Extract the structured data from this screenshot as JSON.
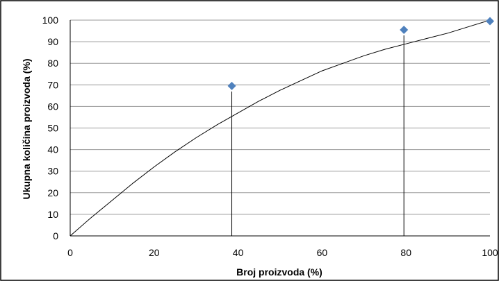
{
  "chart_data": {
    "type": "scatter",
    "title": "",
    "xlabel": "Broj proizvoda (%)",
    "ylabel": "Ukupna količina proizvoda (%)",
    "xlim": [
      0,
      100
    ],
    "ylim": [
      0,
      100
    ],
    "x_ticks": [
      "0",
      "20",
      "40",
      "60",
      "80",
      "100"
    ],
    "y_ticks": [
      "0",
      "10",
      "20",
      "30",
      "40",
      "50",
      "60",
      "70",
      "80",
      "90",
      "100"
    ],
    "grid": "horizontal",
    "legend": "none",
    "points": [
      {
        "x": 38.5,
        "y": 69.5
      },
      {
        "x": 79.5,
        "y": 95.5
      },
      {
        "x": 100,
        "y": 99.5
      }
    ],
    "drop_lines": [
      {
        "x": 38.5,
        "y": 69.5
      },
      {
        "x": 79.5,
        "y": 95.5
      }
    ],
    "curve": [
      {
        "x": 0,
        "y": 0
      },
      {
        "x": 5,
        "y": 8.5
      },
      {
        "x": 10,
        "y": 16.5
      },
      {
        "x": 15,
        "y": 24.5
      },
      {
        "x": 20,
        "y": 32
      },
      {
        "x": 25,
        "y": 39
      },
      {
        "x": 30,
        "y": 45.5
      },
      {
        "x": 35,
        "y": 51.5
      },
      {
        "x": 40,
        "y": 57
      },
      {
        "x": 45,
        "y": 62.5
      },
      {
        "x": 50,
        "y": 67.5
      },
      {
        "x": 55,
        "y": 72
      },
      {
        "x": 60,
        "y": 76.5
      },
      {
        "x": 65,
        "y": 80
      },
      {
        "x": 70,
        "y": 83.5
      },
      {
        "x": 75,
        "y": 86.5
      },
      {
        "x": 80,
        "y": 89
      },
      {
        "x": 85,
        "y": 91.5
      },
      {
        "x": 90,
        "y": 94
      },
      {
        "x": 95,
        "y": 97
      },
      {
        "x": 100,
        "y": 100
      }
    ],
    "colors": {
      "marker": "#4F81BD",
      "curve": "#000000",
      "grid": "#9a9a9a"
    }
  }
}
